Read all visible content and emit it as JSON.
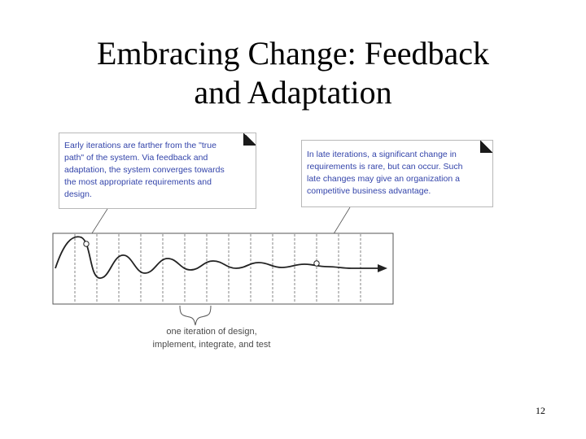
{
  "slide": {
    "title_line1": "Embracing Change: Feedback",
    "title_line2": "and Adaptation",
    "page_number": "12"
  },
  "diagram": {
    "early_note": {
      "lines": [
        "Early iterations are farther from the \"true",
        "path\" of the system. Via feedback and",
        "adaptation, the system converges towards",
        "the most appropriate requirements and",
        "design."
      ]
    },
    "late_note": {
      "lines": [
        "In late iterations, a significant change in",
        "requirements is rare, but can occur. Such",
        "late changes may give an organization a",
        "competitive business advantage."
      ]
    },
    "iteration_label": {
      "line1": "one iteration of design,",
      "line2": "implement, integrate, and test"
    }
  },
  "colors": {
    "note_text": "#3344aa",
    "wave": "#222222",
    "grid": "#666666"
  }
}
